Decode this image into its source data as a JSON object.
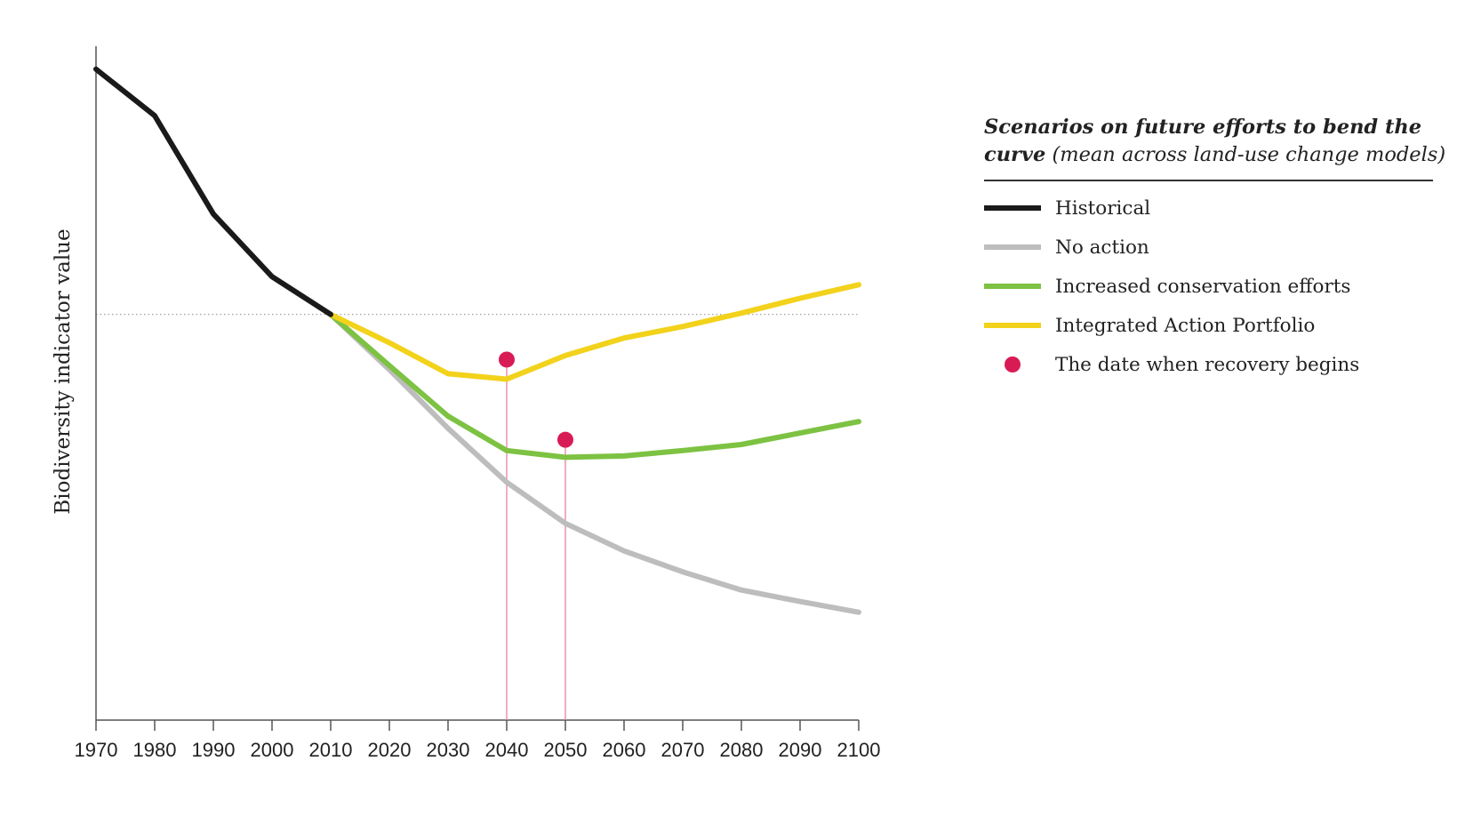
{
  "chart_data": {
    "type": "line",
    "title": "",
    "xlabel": "",
    "ylabel": "Biodiversity indicator value",
    "x_ticks": [
      1970,
      1980,
      1990,
      2000,
      2010,
      2020,
      2030,
      2040,
      2050,
      2060,
      2070,
      2080,
      2090,
      2100
    ],
    "xlim": [
      1970,
      2100
    ],
    "ylim": [
      0,
      100
    ],
    "y_tick_labels": false,
    "grid": false,
    "reference_line": {
      "y": 60.2,
      "style": "dotted"
    },
    "series": [
      {
        "name": "Historical",
        "color": "#1a1a1a",
        "x": [
          1970,
          1980,
          1990,
          2000,
          2010
        ],
        "y": [
          96.6,
          89.7,
          75.1,
          65.8,
          60.2
        ]
      },
      {
        "name": "No action",
        "color": "#bdbdbd",
        "x": [
          2010,
          2020,
          2030,
          2040,
          2050,
          2060,
          2070,
          2080,
          2090,
          2100
        ],
        "y": [
          60.2,
          52.0,
          43.3,
          35.3,
          29.2,
          25.1,
          22.0,
          19.3,
          17.6,
          16.0
        ]
      },
      {
        "name": "Increased conservation efforts",
        "color": "#7dc242",
        "x": [
          2010,
          2020,
          2030,
          2040,
          2050,
          2060,
          2070,
          2080,
          2090,
          2100
        ],
        "y": [
          60.2,
          52.6,
          45.1,
          40.0,
          39.0,
          39.2,
          40.0,
          40.9,
          42.6,
          44.3
        ]
      },
      {
        "name": "Integrated Action Portfolio",
        "color": "#f2d21b",
        "x": [
          2010,
          2020,
          2030,
          2040,
          2050,
          2060,
          2070,
          2080,
          2090,
          2100
        ],
        "y": [
          60.2,
          56.0,
          51.4,
          50.6,
          54.1,
          56.7,
          58.4,
          60.4,
          62.6,
          64.6
        ]
      }
    ],
    "recovery_points": [
      {
        "x": 2040,
        "y": 53.5
      },
      {
        "x": 2050,
        "y": 41.6
      }
    ],
    "legend": {
      "placement": "right",
      "title": "Scenarios on future efforts to bend the curve",
      "title_line1": "Scenarios on future efforts to bend the",
      "title_line2": "curve",
      "subtitle": "(mean across land-use change models)",
      "items": [
        {
          "label": "Historical",
          "color": "#1a1a1a",
          "marker": "line"
        },
        {
          "label": "No action",
          "color": "#bdbdbd",
          "marker": "line"
        },
        {
          "label": "Increased conservation efforts",
          "color": "#7dc242",
          "marker": "line"
        },
        {
          "label": "Integrated Action Portfolio",
          "color": "#f2d21b",
          "marker": "line"
        },
        {
          "label": "The date when recovery begins",
          "color": "#d81b55",
          "marker": "dot"
        }
      ]
    },
    "colors": {
      "axis": "#555555",
      "reference": "#999999",
      "recovery": "#d81b55",
      "recovery_line": "#e8829e"
    }
  }
}
